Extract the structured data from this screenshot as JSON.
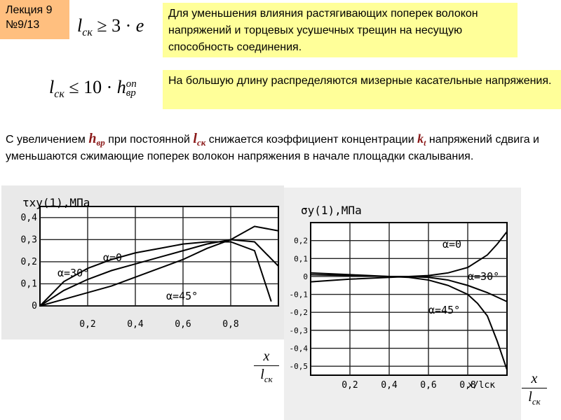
{
  "badge": {
    "lecture": "Лекция 9",
    "number": "№9/13"
  },
  "formula1": {
    "lhs": "l",
    "lhs_sub": "ск",
    "op": "≥ 3 ·",
    "rhs": "e"
  },
  "formula2": {
    "lhs": "l",
    "lhs_sub": "ск",
    "op": "≤ 10 ·",
    "rhs": "h",
    "rhs_sup": "оп",
    "rhs_sub": "вр"
  },
  "note1": {
    "text": "Для уменьшения влияния растягивающих поперек волокон напряжений и торцевых усушечных трещин на несущую способность соединения."
  },
  "note2": {
    "text": "На большую длину распределяются мизерные касательные напряжения."
  },
  "paragraph": {
    "p1": "С увеличением ",
    "h_main": "h",
    "h_sub": "вр",
    "p2": " при постоянной ",
    "l_main": "l",
    "l_sub": "ск",
    "p3": " снижается коэффициент концентрации ",
    "k_main": "k",
    "k_sub": "t",
    "p4": " напряжений сдвига  и уменьшаются сжимающие поперек волокон напряжения в начале площадки скалывания."
  },
  "fraction": {
    "num": "x",
    "den": "l",
    "den_sub": "ск"
  },
  "chart_data": [
    {
      "type": "line",
      "title": "τxy(1),МПа",
      "xlabel": "",
      "x_ticks": [
        "0,2",
        "0,4",
        "0,6",
        "0,8"
      ],
      "y_ticks": [
        "0",
        "0,1",
        "0,2",
        "0,3",
        "0,4"
      ],
      "xlim": [
        0,
        1
      ],
      "ylim": [
        0,
        0.45
      ],
      "series": [
        {
          "name": "α=0",
          "x": [
            0,
            0.1,
            0.2,
            0.3,
            0.4,
            0.5,
            0.6,
            0.7,
            0.8,
            0.9,
            1.0
          ],
          "y": [
            0.0,
            0.03,
            0.06,
            0.09,
            0.13,
            0.17,
            0.21,
            0.26,
            0.3,
            0.36,
            0.34
          ]
        },
        {
          "name": "α=30°",
          "x": [
            0,
            0.1,
            0.2,
            0.3,
            0.4,
            0.5,
            0.6,
            0.7,
            0.8,
            0.9,
            1.0
          ],
          "y": [
            0.0,
            0.07,
            0.12,
            0.16,
            0.19,
            0.22,
            0.25,
            0.28,
            0.3,
            0.29,
            0.18
          ]
        },
        {
          "name": "α=45°",
          "x": [
            0,
            0.1,
            0.2,
            0.3,
            0.4,
            0.5,
            0.6,
            0.7,
            0.8,
            0.9,
            0.97
          ],
          "y": [
            0.0,
            0.11,
            0.17,
            0.21,
            0.24,
            0.26,
            0.28,
            0.29,
            0.29,
            0.25,
            0.02
          ]
        }
      ]
    },
    {
      "type": "line",
      "title": "σy(1),МПа",
      "xlabel": "x/lск",
      "x_ticks": [
        "0,2",
        "0,4",
        "0,6",
        "0,8"
      ],
      "y_ticks": [
        "0,2",
        "0,1",
        "0",
        "-0,1",
        "-0,2",
        "-0,3",
        "-0,4",
        "-0,5"
      ],
      "xlim": [
        0,
        1
      ],
      "ylim": [
        -0.55,
        0.3
      ],
      "series": [
        {
          "name": "α=0",
          "x": [
            0,
            0.2,
            0.4,
            0.5,
            0.6,
            0.7,
            0.8,
            0.9,
            0.95,
            1.0
          ],
          "y": [
            -0.03,
            -0.015,
            -0.005,
            0.0,
            0.005,
            0.02,
            0.05,
            0.12,
            0.18,
            0.25
          ]
        },
        {
          "name": "α=30°",
          "x": [
            0,
            0.2,
            0.4,
            0.5,
            0.6,
            0.7,
            0.8,
            0.9,
            1.0
          ],
          "y": [
            0.01,
            0.005,
            0.0,
            0.0,
            -0.005,
            -0.02,
            -0.05,
            -0.09,
            -0.14
          ]
        },
        {
          "name": "α=45°",
          "x": [
            0,
            0.2,
            0.4,
            0.5,
            0.6,
            0.7,
            0.8,
            0.85,
            0.9,
            0.95,
            1.0
          ],
          "y": [
            0.02,
            0.01,
            0.0,
            -0.005,
            -0.02,
            -0.05,
            -0.1,
            -0.15,
            -0.22,
            -0.36,
            -0.52
          ]
        }
      ]
    }
  ]
}
